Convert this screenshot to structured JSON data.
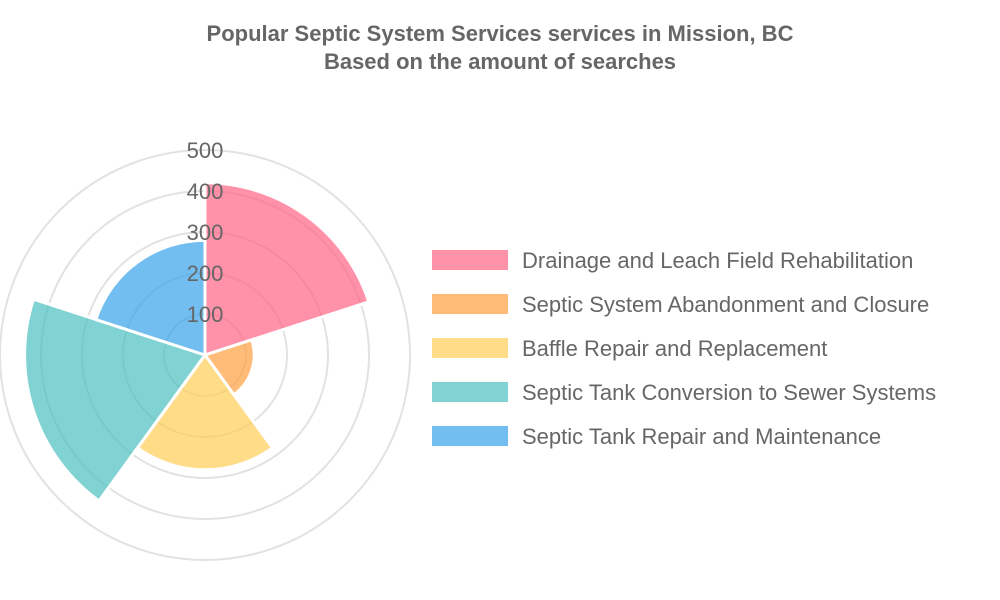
{
  "chart_data": {
    "type": "polarArea",
    "title": "Popular Septic System Services services in Mission, BC",
    "subtitle": "Based on the amount of searches",
    "r_ticks": [
      "100",
      "200",
      "300",
      "400",
      "500"
    ],
    "r_max": 500,
    "grid": true,
    "legend_position": "right",
    "series": [
      {
        "name": "Drainage and Leach Field Rehabilitation",
        "value": 420,
        "color": "#ff6384"
      },
      {
        "name": "Septic System Abandonment and Closure",
        "value": 120,
        "color": "#ff9f40"
      },
      {
        "name": "Baffle Repair and Replacement",
        "value": 280,
        "color": "#ffcd56"
      },
      {
        "name": "Septic Tank Conversion to Sewer Systems",
        "value": 440,
        "color": "#4bc0c0"
      },
      {
        "name": "Septic Tank Repair and Maintenance",
        "value": 280,
        "color": "#36a2eb"
      }
    ]
  }
}
